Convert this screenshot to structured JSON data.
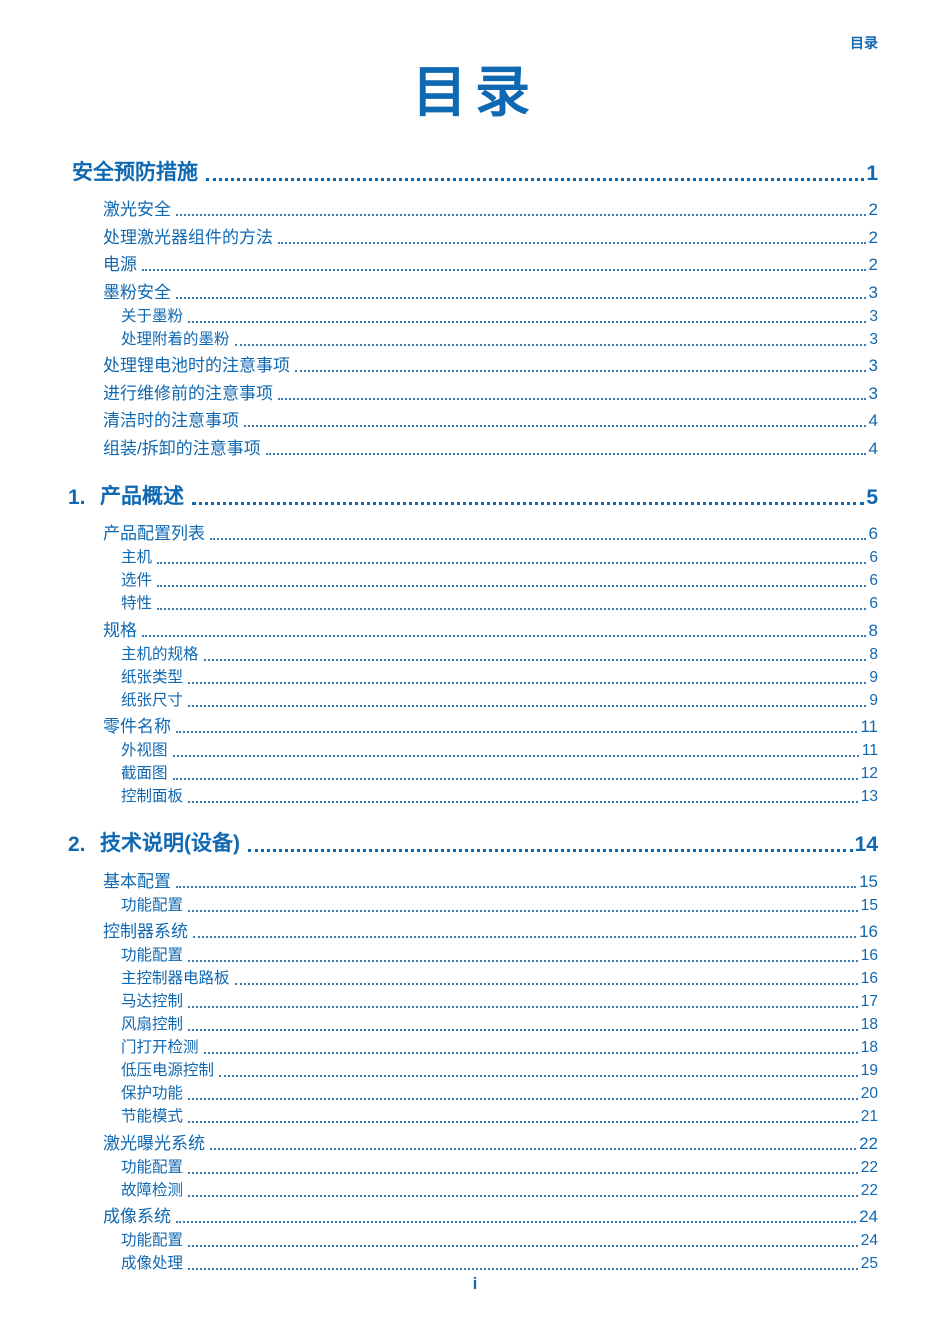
{
  "page": {
    "header": "目录",
    "title": "目录",
    "footer": "i"
  },
  "colors": {
    "accent": "#0f68b2",
    "dot_leader": "#3a7ab8"
  },
  "toc": {
    "sections": [
      {
        "number": "",
        "title": "安全预防措施",
        "page": "1",
        "entries": [
          {
            "level": 1,
            "title": "激光安全",
            "page": "2"
          },
          {
            "level": 1,
            "title": "处理激光器组件的方法",
            "page": "2"
          },
          {
            "level": 1,
            "title": "电源",
            "page": "2"
          },
          {
            "level": 1,
            "title": "墨粉安全",
            "page": "3"
          },
          {
            "level": 2,
            "title": "关于墨粉",
            "page": "3"
          },
          {
            "level": 2,
            "title": "处理附着的墨粉",
            "page": "3"
          },
          {
            "level": 1,
            "title": "处理锂电池时的注意事项",
            "page": "3"
          },
          {
            "level": 1,
            "title": "进行维修前的注意事项",
            "page": "3"
          },
          {
            "level": 1,
            "title": "清洁时的注意事项",
            "page": "4"
          },
          {
            "level": 1,
            "title": "组装/拆卸的注意事项",
            "page": "4"
          }
        ]
      },
      {
        "number": "1.",
        "title": "产品概述",
        "page": "5",
        "entries": [
          {
            "level": 1,
            "title": "产品配置列表",
            "page": "6"
          },
          {
            "level": 2,
            "title": "主机",
            "page": "6"
          },
          {
            "level": 2,
            "title": "选件",
            "page": "6"
          },
          {
            "level": 2,
            "title": "特性",
            "page": "6"
          },
          {
            "level": 1,
            "title": "规格",
            "page": "8"
          },
          {
            "level": 2,
            "title": "主机的规格",
            "page": "8"
          },
          {
            "level": 2,
            "title": "纸张类型",
            "page": "9"
          },
          {
            "level": 2,
            "title": "纸张尺寸",
            "page": "9"
          },
          {
            "level": 1,
            "title": "零件名称",
            "page": "11"
          },
          {
            "level": 2,
            "title": "外视图",
            "page": "11"
          },
          {
            "level": 2,
            "title": "截面图",
            "page": "12"
          },
          {
            "level": 2,
            "title": "控制面板",
            "page": "13"
          }
        ]
      },
      {
        "number": "2.",
        "title": "技术说明(设备)",
        "page": "14",
        "entries": [
          {
            "level": 1,
            "title": "基本配置",
            "page": "15"
          },
          {
            "level": 2,
            "title": "功能配置",
            "page": "15"
          },
          {
            "level": 1,
            "title": "控制器系统",
            "page": "16"
          },
          {
            "level": 2,
            "title": "功能配置",
            "page": "16"
          },
          {
            "level": 2,
            "title": "主控制器电路板",
            "page": "16"
          },
          {
            "level": 2,
            "title": "马达控制",
            "page": "17"
          },
          {
            "level": 2,
            "title": "风扇控制",
            "page": "18"
          },
          {
            "level": 2,
            "title": "门打开检测",
            "page": "18"
          },
          {
            "level": 2,
            "title": "低压电源控制",
            "page": "19"
          },
          {
            "level": 2,
            "title": "保护功能",
            "page": "20"
          },
          {
            "level": 2,
            "title": "节能模式",
            "page": "21"
          },
          {
            "level": 1,
            "title": "激光曝光系统",
            "page": "22"
          },
          {
            "level": 2,
            "title": "功能配置",
            "page": "22"
          },
          {
            "level": 2,
            "title": "故障检测",
            "page": "22"
          },
          {
            "level": 1,
            "title": "成像系统",
            "page": "24"
          },
          {
            "level": 2,
            "title": "功能配置",
            "page": "24"
          },
          {
            "level": 2,
            "title": "成像处理",
            "page": "25"
          }
        ]
      }
    ]
  }
}
